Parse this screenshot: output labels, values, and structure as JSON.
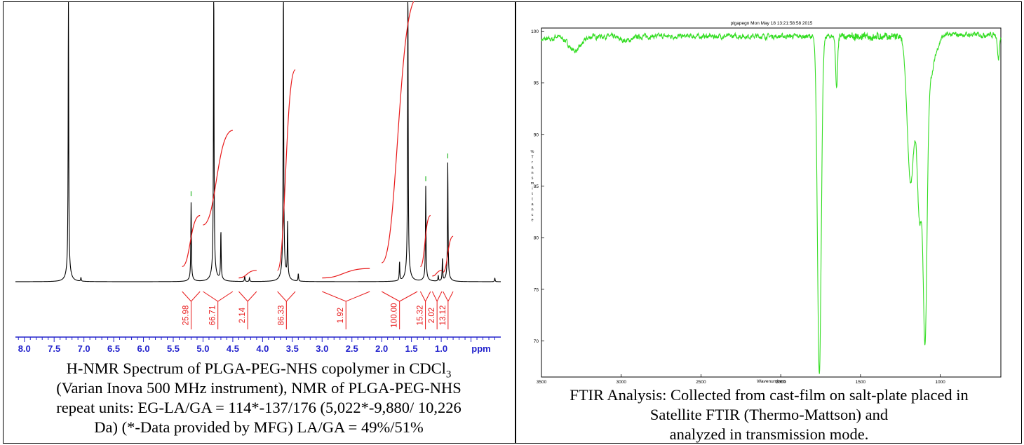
{
  "nmr": {
    "caption": {
      "line1_pre": "H-NMR Spectrum of PLGA-PEG-NHS copolymer in CDCl",
      "line1_sub": "3",
      "line2": "(Varian Inova 500 MHz instrument), NMR of PLGA-PEG-NHS",
      "line3": "repeat units: EG-LA/GA = 114*-137/176 (5,022*-9,880/ 10,226",
      "line4": "Da) (*-Data provided by MFG) LA/GA = 49%/51%"
    },
    "colors": {
      "spectrum": "#000000",
      "integral": "#e8191a",
      "axis": "#2222cc",
      "peak_marker": "#2bb82b"
    }
  },
  "ftir": {
    "caption": {
      "line1": "FTIR Analysis: Collected from cast-film on salt-plate placed in",
      "line2": "Satellite FTIR (Thermo-Mattson) and",
      "line3": "analyzed in transmission mode."
    },
    "colors": {
      "spectrum": "#33dd22"
    }
  },
  "chart_data": [
    {
      "type": "line",
      "title": "",
      "xlabel": "ppm",
      "ylabel": "",
      "x_reversed": true,
      "xlim": [
        8.15,
        0.0
      ],
      "x_ticks": [
        "8.0",
        "7.5",
        "7.0",
        "6.5",
        "6.0",
        "5.5",
        "5.0",
        "4.5",
        "4.0",
        "3.5",
        "3.0",
        "2.5",
        "2.0",
        "1.5",
        "1.0"
      ],
      "x_tick_values": [
        8.0,
        7.5,
        7.0,
        6.5,
        6.0,
        5.5,
        5.0,
        4.5,
        4.0,
        3.5,
        3.0,
        2.5,
        2.0,
        1.5,
        1.0
      ],
      "peaks": [
        {
          "ppm": 7.26,
          "height": 1.45
        },
        {
          "ppm": 7.05,
          "height": 0.02
        },
        {
          "ppm": 5.2,
          "height": 0.4
        },
        {
          "ppm": 4.82,
          "height": 1.55
        },
        {
          "ppm": 4.7,
          "height": 0.25
        },
        {
          "ppm": 4.3,
          "height": 0.03
        },
        {
          "ppm": 4.22,
          "height": 0.02
        },
        {
          "ppm": 3.65,
          "height": 1.5
        },
        {
          "ppm": 3.58,
          "height": 0.28
        },
        {
          "ppm": 3.4,
          "height": 0.04
        },
        {
          "ppm": 1.7,
          "height": 0.1
        },
        {
          "ppm": 1.56,
          "height": 1.55
        },
        {
          "ppm": 1.26,
          "height": 0.48
        },
        {
          "ppm": 1.05,
          "height": 0.03
        },
        {
          "ppm": 0.98,
          "height": 0.12
        },
        {
          "ppm": 0.89,
          "height": 0.6
        },
        {
          "ppm": 0.1,
          "height": 0.02
        }
      ],
      "integrals": [
        {
          "value": "25.98",
          "from": 5.35,
          "to": 5.05,
          "start": 0.08,
          "end": 0.35
        },
        {
          "value": "66.71",
          "from": 5.0,
          "to": 4.5,
          "start": 0.3,
          "end": 0.8
        },
        {
          "value": "2.14",
          "from": 4.4,
          "to": 4.1,
          "start": 0.02,
          "end": 0.06
        },
        {
          "value": "86.33",
          "from": 3.75,
          "to": 3.45,
          "start": 0.06,
          "end": 1.12
        },
        {
          "value": "1.92",
          "from": 3.0,
          "to": 2.2,
          "start": 0.02,
          "end": 0.07
        },
        {
          "value": "100.00",
          "from": 2.0,
          "to": 1.4,
          "start": 0.1,
          "end": 1.5
        },
        {
          "value": "15.32",
          "from": 1.35,
          "to": 1.18,
          "start": 0.08,
          "end": 0.35
        },
        {
          "value": "2.02",
          "from": 1.15,
          "to": 0.99,
          "start": 0.03,
          "end": 0.06
        },
        {
          "value": "13.12",
          "from": 0.97,
          "to": 0.8,
          "start": 0.05,
          "end": 0.24
        }
      ]
    },
    {
      "type": "line",
      "title": "plgapegn  Mon May 18 13:21:58:58 2015",
      "xlabel": "Wavenumbers",
      "ylabel": "%Transmittance",
      "x_reversed": true,
      "xlim": [
        3500,
        620
      ],
      "ylim": [
        66.5,
        100.3
      ],
      "x_ticks": [
        "3500",
        "3000",
        "2500",
        "2000",
        "1500",
        "1000"
      ],
      "x_tick_values": [
        3500,
        3000,
        2500,
        2000,
        1500,
        1000
      ],
      "y_ticks": [
        "100",
        "95",
        "90",
        "85",
        "80",
        "75",
        "70"
      ],
      "y_tick_values": [
        100,
        95,
        90,
        85,
        80,
        75,
        70
      ],
      "baseline": 99.5,
      "bands": [
        {
          "center": 3290,
          "depth": 1.4,
          "width": 40
        },
        {
          "center": 2995,
          "depth": 0.25,
          "width": 30
        },
        {
          "center": 2950,
          "depth": 0.3,
          "width": 30
        },
        {
          "center": 1758,
          "depth": 32.5,
          "width": 12
        },
        {
          "center": 1650,
          "depth": 5.0,
          "width": 6
        },
        {
          "center": 1185,
          "depth": 14.0,
          "width": 22
        },
        {
          "center": 1130,
          "depth": 14.5,
          "width": 15
        },
        {
          "center": 1095,
          "depth": 24.0,
          "width": 12
        },
        {
          "center": 1085,
          "depth": 5.0,
          "width": 40
        },
        {
          "center": 635,
          "depth": 2.2,
          "width": 6
        }
      ]
    }
  ]
}
